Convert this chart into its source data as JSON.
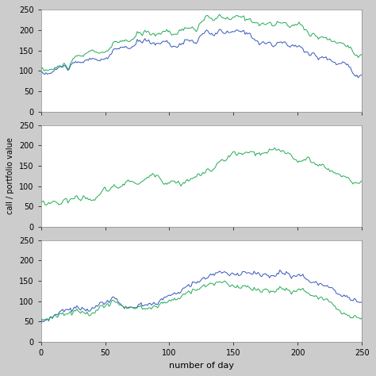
{
  "n_days": 251,
  "ylim": [
    0,
    250
  ],
  "xlim": [
    0,
    250
  ],
  "yticks": [
    0,
    50,
    100,
    150,
    200,
    250
  ],
  "xticks": [
    0,
    50,
    100,
    150,
    200,
    250
  ],
  "ylabel": "call / portfolio value",
  "xlabel": "number of day",
  "blue_color": "#3355bb",
  "green_color": "#22aa55",
  "bg_color": "#ffffff",
  "line_width": 0.7,
  "figure_bg": "#cccccc"
}
